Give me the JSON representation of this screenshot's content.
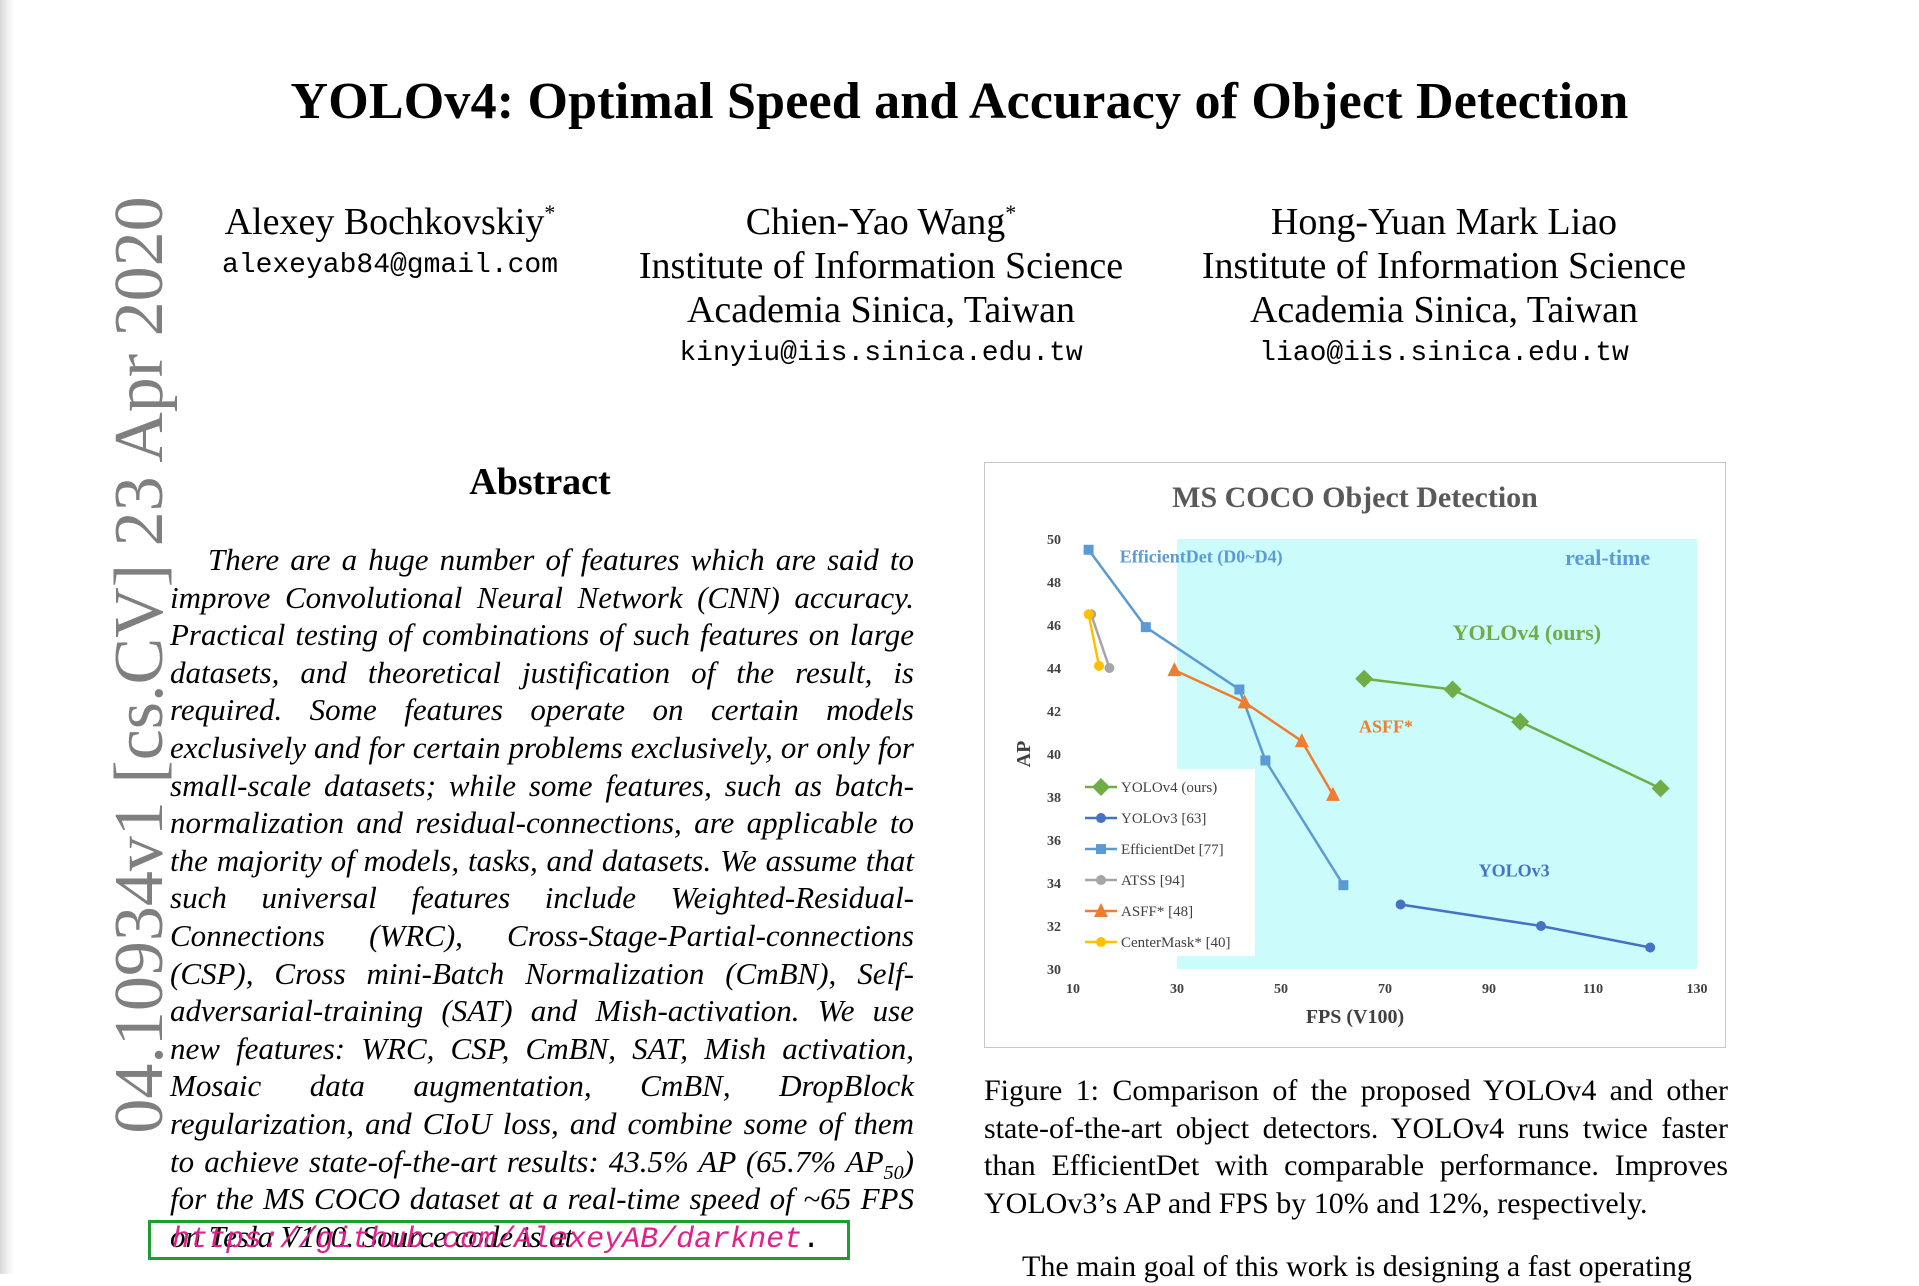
{
  "paper": {
    "title": "YOLOv4: Optimal Speed and Accuracy of Object Detection",
    "authors": [
      {
        "name": "Alexey Bochkovskiy",
        "mark": "*",
        "email": "alexeyab84@gmail.com"
      },
      {
        "name": "Chien-Yao Wang",
        "mark": "*",
        "institution": "Institute of Information Science",
        "location": "Academia Sinica, Taiwan",
        "email": "kinyiu@iis.sinica.edu.tw"
      },
      {
        "name": "Hong-Yuan Mark Liao",
        "institution": "Institute of Information Science",
        "location": "Academia Sinica, Taiwan",
        "email": "liao@iis.sinica.edu.tw"
      }
    ],
    "arxiv_id": "04.10934v1  [cs.CV]  23 Apr 2020"
  },
  "abstract": {
    "heading": "Abstract",
    "text_a": "There are a huge number of features which are said to improve Convolutional Neural Network (CNN) accuracy. Practical testing of combinations of such features on large datasets, and theoretical justification of the result, is required. Some features operate on certain models exclusively and for certain problems exclusively, or only for small-scale datasets; while some features, such as batch-normalization and residual-connections, are applicable to the majority of models, tasks, and datasets. We assume that such universal features include Weighted-Residual-Connections (WRC), Cross-Stage-Partial-connections (CSP), Cross mini-Batch Normalization (CmBN), Self-adversarial-training (SAT) and Mish-activation.  We use new features: WRC, CSP, CmBN, SAT, Mish activation, Mosaic data augmentation, CmBN, DropBlock regularization, and CIoU loss, and combine some of them to achieve state-of-the-art results: 43.5% AP (65.7% AP",
    "sub": "50",
    "text_b": ") for the MS COCO dataset at a real-time speed of ~65 FPS on Tesla V100.  Source code is at",
    "link": "https://github.com/AlexeyAB/darknet",
    "link_end": "."
  },
  "figure": {
    "caption": "Figure 1:  Comparison of the proposed YOLOv4 and other state-of-the-art object detectors.  YOLOv4 runs twice faster than EfficientDet with comparable performance.  Improves YOLOv3’s AP and FPS by 10% and 12%, respectively."
  },
  "next_paragraph": "The main goal of this work is designing a fast operating",
  "chart_data": {
    "type": "line",
    "title": "MS COCO Object Detection",
    "xlabel": "FPS (V100)",
    "ylabel": "AP",
    "xlim": [
      10,
      130
    ],
    "ylim": [
      30,
      50
    ],
    "xticks": [
      10,
      30,
      50,
      70,
      90,
      110,
      130
    ],
    "yticks": [
      30,
      32,
      34,
      36,
      38,
      40,
      42,
      44,
      46,
      48,
      50
    ],
    "shaded_region": {
      "label": "real-time",
      "x_from": 30,
      "x_to": 130,
      "color": "#ccfbfb"
    },
    "legend_position": "left-bottom",
    "series": [
      {
        "name": "YOLOv4 (ours)",
        "color": "#70ad47",
        "marker": "diamond",
        "x": [
          66,
          83,
          96,
          123
        ],
        "y": [
          43.5,
          43.0,
          41.5,
          38.4
        ]
      },
      {
        "name": "YOLOv3 [63]",
        "color": "#4472c4",
        "marker": "circle",
        "x": [
          73,
          100,
          121
        ],
        "y": [
          33.0,
          32.0,
          31.0
        ]
      },
      {
        "name": "EfficientDet [77]",
        "color": "#5b9bd5",
        "marker": "square",
        "x": [
          13,
          24,
          42,
          47,
          62
        ],
        "y": [
          49.5,
          45.9,
          43.0,
          39.7,
          33.9
        ]
      },
      {
        "name": "ATSS [94]",
        "color": "#a5a5a5",
        "marker": "circle",
        "x": [
          13.5,
          17
        ],
        "y": [
          46.5,
          44.0
        ]
      },
      {
        "name": "ASFF* [48]",
        "color": "#ed7d31",
        "marker": "triangle",
        "x": [
          29.5,
          43,
          54,
          60
        ],
        "y": [
          43.9,
          42.4,
          40.6,
          38.1
        ]
      },
      {
        "name": "CenterMask* [40]",
        "color": "#ffc000",
        "marker": "circle",
        "x": [
          13,
          15
        ],
        "y": [
          46.5,
          44.1
        ]
      }
    ],
    "annotations": [
      {
        "text": "EfficientDet (D0~D4)",
        "color": "#5b9bd5",
        "x": 19,
        "y": 48.9
      },
      {
        "text": "real-time",
        "color": "#5b9bd5",
        "x": 121,
        "y": 48.8
      },
      {
        "text": "YOLOv4 (ours)",
        "color": "#70ad47",
        "x": 83,
        "y": 45.3
      },
      {
        "text": "ASFF*",
        "color": "#ed7d31",
        "x": 65,
        "y": 41.0
      },
      {
        "text": "YOLOv3",
        "color": "#4472c4",
        "x": 88,
        "y": 34.3
      }
    ]
  }
}
